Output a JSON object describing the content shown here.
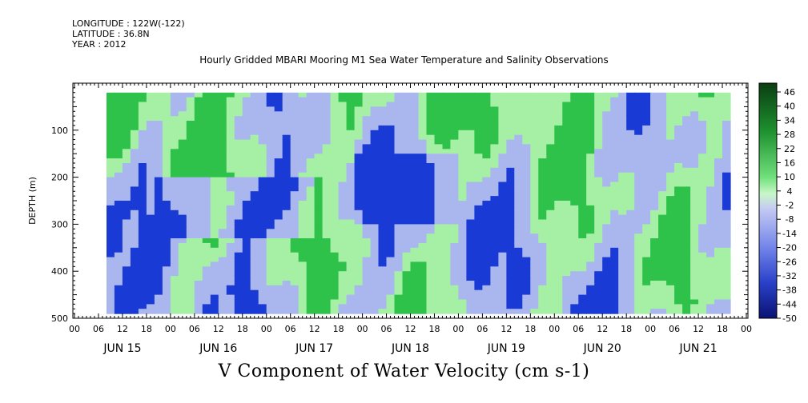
{
  "header": {
    "longitude": "LONGITUDE : 122W(-122)",
    "latitude": "LATITUDE : 36.8N",
    "year": "YEAR : 2012"
  },
  "chart_data": {
    "type": "heatmap",
    "title": "Hourly Gridded MBARI Mooring M1 Sea Water Temperature and Salinity Observations",
    "xlabel": "V Component of Water Velocity (cm s-1)",
    "ylabel": "DEPTH (m)",
    "ylim": [
      500,
      0
    ],
    "y_ticks": [
      100,
      200,
      300,
      400,
      500
    ],
    "x_hour_ticks": [
      "00",
      "06",
      "12",
      "18",
      "00",
      "06",
      "12",
      "18",
      "00",
      "06",
      "12",
      "18",
      "00",
      "06",
      "12",
      "18",
      "00",
      "06",
      "12",
      "18",
      "00",
      "06",
      "12",
      "18",
      "00",
      "06",
      "12",
      "18",
      "00"
    ],
    "x_day_labels": [
      "JUN 15",
      "JUN 16",
      "JUN 17",
      "JUN 18",
      "JUN 19",
      "JUN 20",
      "JUN 21"
    ],
    "colorbar": {
      "labels": [
        "46",
        "40",
        "34",
        "28",
        "22",
        "16",
        "10",
        "4",
        "-2",
        "-8",
        "-14",
        "-20",
        "-26",
        "-32",
        "-38",
        "-44",
        "-50"
      ],
      "range": [
        -50,
        46
      ]
    },
    "data_depth_range": [
      20,
      490
    ],
    "data_time_range_hours": [
      8,
      164
    ],
    "colors": {
      "strong_negative": "#1a3ad6",
      "weak_negative": "#aab6ee",
      "weak_positive": "#a6f0a6",
      "strong_positive": "#2fc24a"
    }
  }
}
